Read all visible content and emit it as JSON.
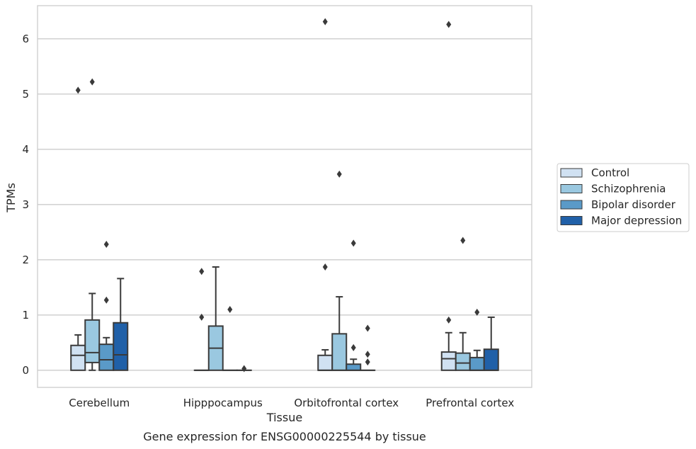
{
  "chart_data": {
    "type": "box",
    "title": "",
    "caption": "Gene expression for ENSG00000225544 by tissue",
    "xlabel": "Tissue",
    "ylabel": "TPMs",
    "ylim": [
      -0.31,
      6.6
    ],
    "yticks": [
      0,
      1,
      2,
      3,
      4,
      5,
      6
    ],
    "grid": "horizontal",
    "legend_position": "right",
    "categories": [
      "Cerebellum",
      "Hipppocampus",
      "Orbitofrontal cortex",
      "Prefrontal cortex"
    ],
    "series": [
      {
        "name": "Control",
        "color": "#d0e1f2",
        "boxes": [
          {
            "q1": 0.0,
            "median": 0.27,
            "q3": 0.45,
            "whisker_low": 0.0,
            "whisker_high": 0.64,
            "outliers": [
              5.07
            ]
          },
          {
            "q1": 0.0,
            "median": 0.0,
            "q3": 0.0,
            "whisker_low": 0.0,
            "whisker_high": 0.0,
            "outliers": [
              0.96,
              1.79
            ]
          },
          {
            "q1": 0.0,
            "median": 0.0,
            "q3": 0.27,
            "whisker_low": 0.0,
            "whisker_high": 0.37,
            "outliers": [
              1.87,
              6.31
            ]
          },
          {
            "q1": 0.0,
            "median": 0.21,
            "q3": 0.33,
            "whisker_low": 0.0,
            "whisker_high": 0.68,
            "outliers": [
              0.91,
              6.26
            ]
          }
        ]
      },
      {
        "name": "Schizophrenia",
        "color": "#9ac8e0",
        "boxes": [
          {
            "q1": 0.14,
            "median": 0.32,
            "q3": 0.91,
            "whisker_low": 0.0,
            "whisker_high": 1.39,
            "outliers": [
              5.22
            ]
          },
          {
            "q1": 0.0,
            "median": 0.4,
            "q3": 0.8,
            "whisker_low": 0.0,
            "whisker_high": 1.87,
            "outliers": []
          },
          {
            "q1": 0.0,
            "median": 0.0,
            "q3": 0.66,
            "whisker_low": 0.0,
            "whisker_high": 1.33,
            "outliers": [
              3.55
            ]
          },
          {
            "q1": 0.0,
            "median": 0.13,
            "q3": 0.31,
            "whisker_low": 0.0,
            "whisker_high": 0.68,
            "outliers": [
              2.35
            ]
          }
        ]
      },
      {
        "name": "Bipolar disorder",
        "color": "#5a9ac8",
        "boxes": [
          {
            "q1": 0.0,
            "median": 0.19,
            "q3": 0.47,
            "whisker_low": 0.0,
            "whisker_high": 0.59,
            "outliers": [
              1.27,
              2.28
            ]
          },
          {
            "q1": 0.0,
            "median": 0.0,
            "q3": 0.0,
            "whisker_low": 0.0,
            "whisker_high": 0.0,
            "outliers": [
              1.1
            ]
          },
          {
            "q1": 0.0,
            "median": 0.0,
            "q3": 0.11,
            "whisker_low": 0.0,
            "whisker_high": 0.2,
            "outliers": [
              0.41,
              2.3
            ]
          },
          {
            "q1": 0.0,
            "median": 0.0,
            "q3": 0.23,
            "whisker_low": 0.0,
            "whisker_high": 0.36,
            "outliers": [
              1.05
            ]
          }
        ]
      },
      {
        "name": "Major depression",
        "color": "#2060a8",
        "boxes": [
          {
            "q1": 0.0,
            "median": 0.28,
            "q3": 0.86,
            "whisker_low": 0.0,
            "whisker_high": 1.66,
            "outliers": []
          },
          {
            "q1": 0.0,
            "median": 0.0,
            "q3": 0.0,
            "whisker_low": 0.0,
            "whisker_high": 0.0,
            "outliers": [
              0.03
            ]
          },
          {
            "q1": 0.0,
            "median": 0.0,
            "q3": 0.0,
            "whisker_low": 0.0,
            "whisker_high": 0.0,
            "outliers": [
              0.15,
              0.29,
              0.76
            ]
          },
          {
            "q1": 0.0,
            "median": 0.0,
            "q3": 0.38,
            "whisker_low": 0.0,
            "whisker_high": 0.96,
            "outliers": []
          }
        ]
      }
    ]
  }
}
